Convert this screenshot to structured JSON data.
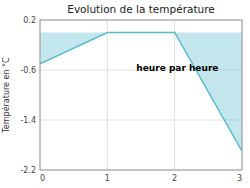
{
  "chart_data": {
    "type": "area",
    "title": "Evolution de la température",
    "x_label": "heure par heure",
    "y_label": "Température en °C",
    "x": [
      0,
      1,
      2,
      3
    ],
    "values": [
      -0.5,
      0.0,
      0.0,
      -1.9
    ],
    "color": "#55bbcc",
    "xlim": [
      0,
      3
    ],
    "ylim": [
      -2.2,
      0.2
    ],
    "xticks": [
      0,
      1,
      2,
      3
    ],
    "yticks": [
      0.2,
      -0.6,
      -1.4,
      -2.2
    ],
    "grid": true
  }
}
